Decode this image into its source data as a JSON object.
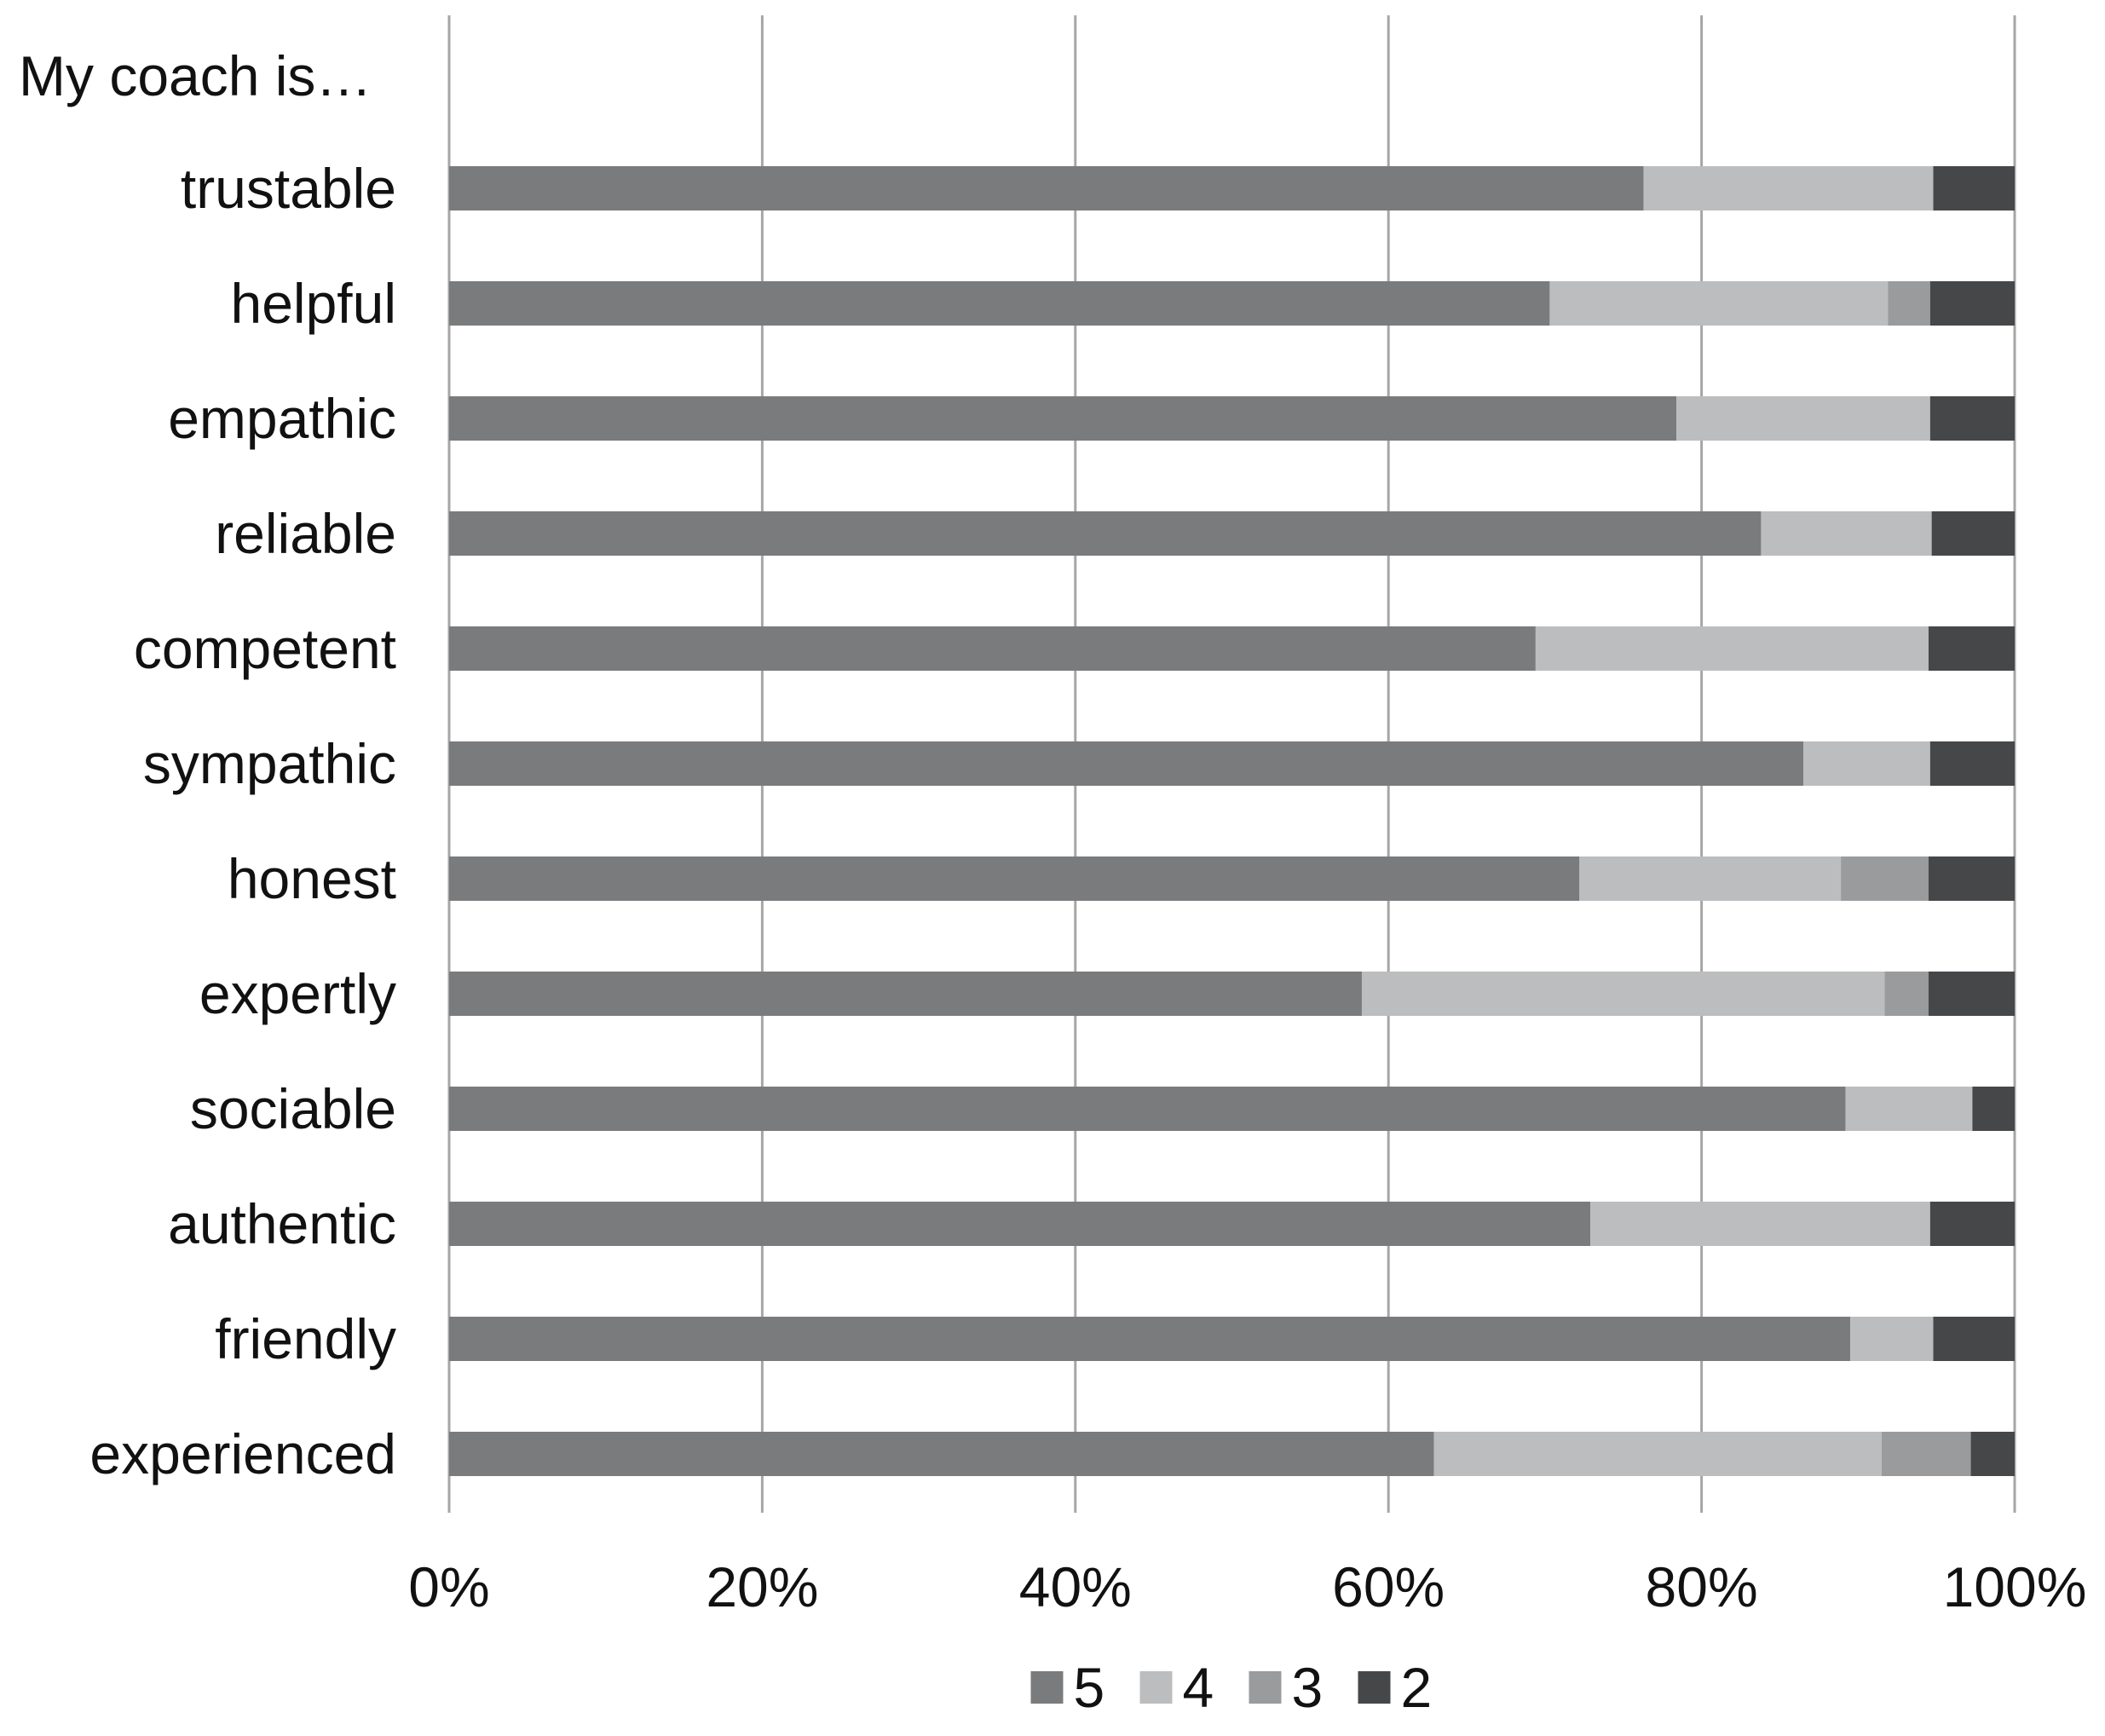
{
  "chart_data": {
    "type": "bar",
    "orientation": "horizontal",
    "stacked": "percent",
    "title": "My coach is…",
    "categories": [
      "trustable",
      "helpful",
      "empathic",
      "reliable",
      "competent",
      "sympathic",
      "honest",
      "expertly",
      "sociable",
      "authentic",
      "friendly",
      "experienced"
    ],
    "series": [
      {
        "name": "5",
        "color": "#7a7b7d",
        "values": [
          76.3,
          70.3,
          78.4,
          83.8,
          69.4,
          86.5,
          72.2,
          58.3,
          89.2,
          72.9,
          89.5,
          62.9
        ]
      },
      {
        "name": "4",
        "color": "#bcbdbf",
        "values": [
          18.5,
          21.6,
          16.2,
          10.9,
          25.1,
          8.1,
          16.7,
          33.4,
          8.1,
          21.7,
          5.3,
          28.6
        ]
      },
      {
        "name": "3",
        "color": "#9a9b9d",
        "values": [
          0,
          2.7,
          0,
          0,
          0,
          0,
          5.6,
          2.8,
          0,
          0,
          0,
          5.7
        ]
      },
      {
        "name": "2",
        "color": "#464749",
        "values": [
          5.2,
          5.4,
          5.4,
          5.3,
          5.5,
          5.4,
          5.5,
          5.5,
          2.7,
          5.4,
          5.2,
          2.8
        ]
      }
    ],
    "xaxis": {
      "ticks": [
        "0%",
        "20%",
        "40%",
        "60%",
        "80%",
        "100%"
      ],
      "range": [
        0,
        100
      ]
    },
    "grid": "vertical lines",
    "legend": {
      "position": "bottom",
      "entries": [
        "5",
        "4",
        "3",
        "2"
      ]
    }
  }
}
